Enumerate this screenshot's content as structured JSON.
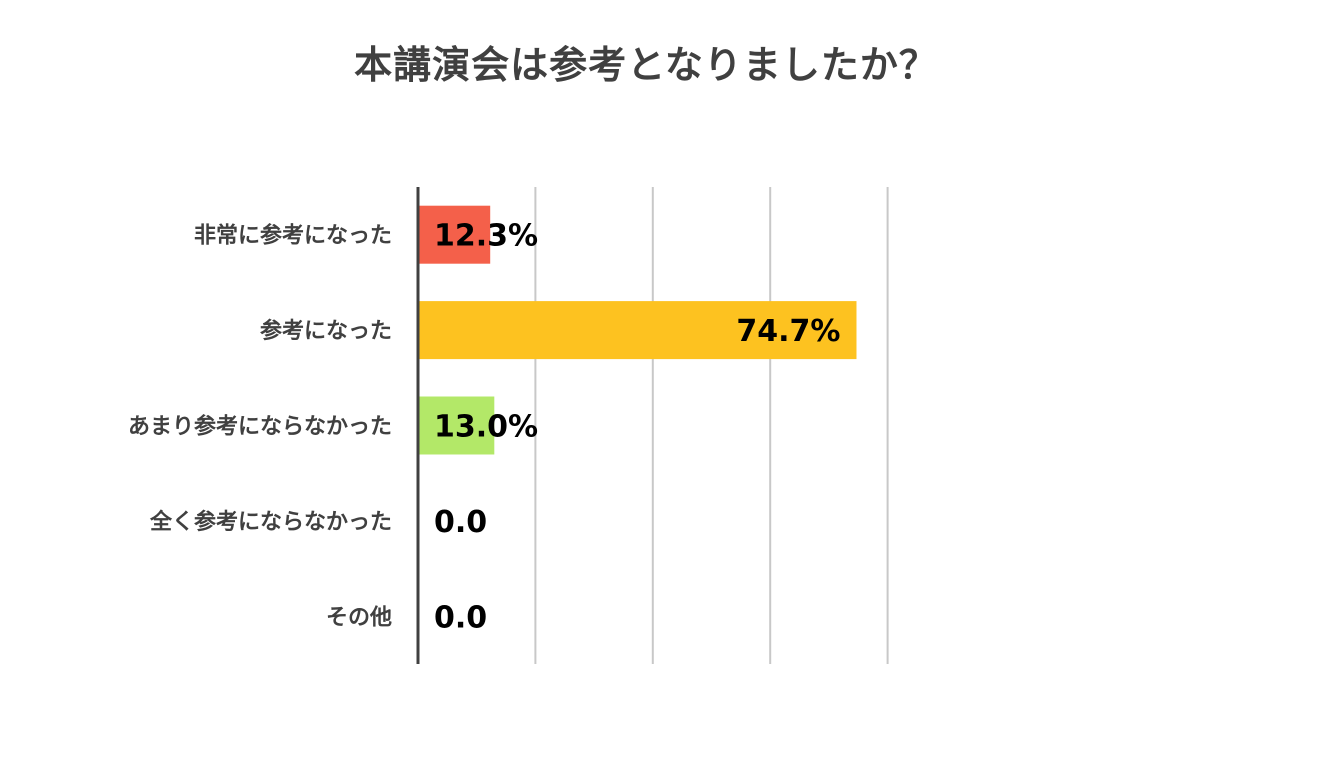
{
  "chart_data": {
    "type": "bar",
    "orientation": "horizontal",
    "title": "本講演会は参考となりましたか？",
    "categories": [
      "非常に参考になった",
      "参考になった",
      "あまり参考にならなかった",
      "全く参考にならなかった",
      "その他"
    ],
    "values": [
      12.3,
      74.7,
      13.0,
      0.0,
      0.0
    ],
    "data_labels": [
      "12.3%",
      "74.7%",
      "13.0%",
      "0.0",
      "0.0"
    ],
    "colors": [
      "#f4604a",
      "#fdc220",
      "#b3e868",
      "#a5a5a5",
      "#a5a5a5"
    ],
    "xlim": [
      0,
      100
    ],
    "grid": true,
    "xlabel": "",
    "ylabel": ""
  }
}
